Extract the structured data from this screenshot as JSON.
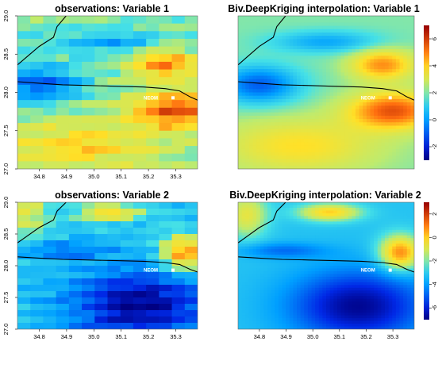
{
  "chart_data": [
    {
      "type": "heatmap",
      "title": "observations: Variable 1",
      "x_range": [
        34.72,
        35.38
      ],
      "y_range": [
        27.0,
        29.0
      ],
      "x_ticks": [
        "34.8",
        "34.9",
        "35.0",
        "35.1",
        "35.2",
        "35.3"
      ],
      "y_ticks": [
        "27.0",
        "27.5",
        "28.0",
        "28.5",
        "29.0"
      ],
      "landmark": {
        "label": "NEOM",
        "lon": 35.29,
        "lat": 27.93
      },
      "grid": "coarse",
      "colorbar": false
    },
    {
      "type": "heatmap",
      "title": "Biv.DeepKriging interpolation: Variable 1",
      "x_range": [
        34.72,
        35.38
      ],
      "y_range": [
        27.0,
        29.0
      ],
      "landmark": {
        "label": "NEOM",
        "lon": 35.29,
        "lat": 27.93
      },
      "grid": "smooth",
      "colorbar": true,
      "colorbar_ticks": [
        "-2",
        "0",
        "2",
        "4",
        "6"
      ],
      "colorbar_range": [
        -3,
        7
      ]
    },
    {
      "type": "heatmap",
      "title": "observations: Variable 2",
      "x_range": [
        34.72,
        35.38
      ],
      "y_range": [
        27.0,
        29.0
      ],
      "x_ticks": [
        "34.8",
        "34.9",
        "35.0",
        "35.1",
        "35.2",
        "35.3"
      ],
      "y_ticks": [
        "27.0",
        "27.5",
        "28.0",
        "28.5",
        "29.0"
      ],
      "landmark": {
        "label": "NEOM",
        "lon": 35.29,
        "lat": 27.93
      },
      "grid": "coarse",
      "colorbar": false
    },
    {
      "type": "heatmap",
      "title": "Biv.DeepKriging interpolation: Variable 2",
      "x_range": [
        34.72,
        35.38
      ],
      "y_range": [
        27.0,
        29.0
      ],
      "x_ticks": [
        "34.8",
        "34.9",
        "35.0",
        "35.1",
        "35.2",
        "35.3"
      ],
      "landmark": {
        "label": "NEOM",
        "lon": 35.29,
        "lat": 27.93
      },
      "grid": "smooth",
      "colorbar": true,
      "colorbar_ticks": [
        "-6",
        "-4",
        "-2",
        "0",
        "2"
      ],
      "colorbar_range": [
        -7,
        3
      ]
    }
  ]
}
